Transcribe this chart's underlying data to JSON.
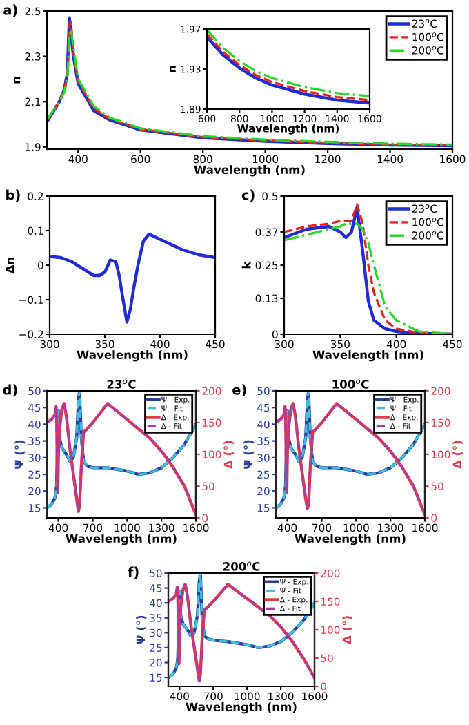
{
  "chart_data": [
    {
      "type": "line",
      "xlabel": "Wavelength (nm)",
      "ylabel": "n",
      "annotations": [
        "a)"
      ],
      "xlim": [
        300,
        1600
      ],
      "ylim": [
        1.89,
        2.5
      ],
      "xticks": [
        400,
        600,
        800,
        1000,
        1200,
        1400,
        1600
      ],
      "yticks": [
        1.9,
        2.1,
        2.3,
        2.5
      ],
      "legend": "top right",
      "x": [
        300,
        340,
        355,
        365,
        372,
        377,
        385,
        400,
        450,
        500,
        600,
        800,
        1000,
        1200,
        1400,
        1600
      ],
      "series": [
        {
          "name": "23$^{o}$C",
          "color": "#1f2bd6",
          "line_style": "solid",
          "values": [
            2.01,
            2.1,
            2.15,
            2.22,
            2.47,
            2.4,
            2.3,
            2.18,
            2.06,
            2.02,
            1.975,
            1.94,
            1.925,
            1.915,
            1.908,
            1.905
          ]
        },
        {
          "name": "100$^{o}$C",
          "color": "#e8231f",
          "line_style": "dashed",
          "values": [
            2.015,
            2.1,
            2.15,
            2.21,
            2.44,
            2.45,
            2.32,
            2.19,
            2.07,
            2.025,
            1.978,
            1.943,
            1.928,
            1.918,
            1.91,
            1.907
          ]
        },
        {
          "name": "200$^{o}$C",
          "color": "#2bd62b",
          "line_style": "dashdot",
          "values": [
            2.02,
            2.1,
            2.14,
            2.19,
            2.38,
            2.42,
            2.34,
            2.2,
            2.08,
            2.03,
            1.982,
            1.947,
            1.932,
            1.922,
            1.914,
            1.91
          ]
        }
      ]
    },
    {
      "type": "line",
      "xlabel": "Wavelength (nm)",
      "ylabel": "n",
      "xlim": [
        600,
        1600
      ],
      "ylim": [
        1.89,
        1.97
      ],
      "xticks": [
        600,
        800,
        1000,
        1200,
        1400,
        1600
      ],
      "yticks": [
        1.89,
        1.93,
        1.97
      ],
      "x": [
        600,
        700,
        800,
        900,
        1000,
        1200,
        1400,
        1600
      ],
      "series": [
        {
          "color": "#1f2bd6",
          "line_style": "solid",
          "values": [
            1.962,
            1.944,
            1.931,
            1.921,
            1.914,
            1.905,
            1.899,
            1.896
          ]
        },
        {
          "color": "#e8231f",
          "line_style": "dashed",
          "values": [
            1.965,
            1.947,
            1.934,
            1.924,
            1.917,
            1.908,
            1.902,
            1.899
          ]
        },
        {
          "color": "#2bd62b",
          "line_style": "dashdot",
          "values": [
            1.969,
            1.951,
            1.938,
            1.928,
            1.921,
            1.912,
            1.906,
            1.903
          ]
        }
      ]
    },
    {
      "type": "line",
      "xlabel": "Wavelength (nm)",
      "ylabel": "Δn",
      "annotations": [
        "b)"
      ],
      "xlim": [
        300,
        450
      ],
      "ylim": [
        -0.2,
        0.2
      ],
      "xticks": [
        300,
        350,
        400,
        450
      ],
      "yticks": [
        {
          "value": -0.2,
          "label": "−0.2"
        },
        {
          "value": -0.1,
          "label": "−0.1"
        },
        0,
        0.1,
        0.2
      ],
      "x": [
        300,
        310,
        320,
        330,
        340,
        345,
        350,
        355,
        360,
        363,
        366,
        370,
        373,
        376,
        380,
        385,
        390,
        400,
        410,
        420,
        435,
        450
      ],
      "series": [
        {
          "color": "#1f2bd6",
          "line_style": "solid",
          "values": [
            0.025,
            0.022,
            0.01,
            -0.01,
            -0.03,
            -0.03,
            -0.02,
            0.015,
            0.01,
            -0.03,
            -0.09,
            -0.165,
            -0.13,
            -0.07,
            0.0,
            0.07,
            0.09,
            0.075,
            0.06,
            0.045,
            0.03,
            0.022
          ]
        }
      ]
    },
    {
      "type": "line",
      "xlabel": "Wavelength (nm)",
      "ylabel": "k",
      "annotations": [
        "c)"
      ],
      "xlim": [
        300,
        450
      ],
      "ylim": [
        0,
        0.5
      ],
      "xticks": [
        300,
        350,
        400,
        450
      ],
      "yticks": [
        0,
        0.13,
        0.25,
        0.37,
        0.5
      ],
      "legend": "top right",
      "x": [
        300,
        320,
        340,
        350,
        355,
        360,
        365,
        370,
        375,
        380,
        390,
        400,
        420,
        450
      ],
      "series": [
        {
          "name": "23$^{o}$C",
          "color": "#1f2bd6",
          "line_style": "solid",
          "values": [
            0.35,
            0.38,
            0.39,
            0.37,
            0.35,
            0.37,
            0.46,
            0.3,
            0.12,
            0.05,
            0.02,
            0.01,
            0.003,
            0.0
          ]
        },
        {
          "name": "100$^{o}$C",
          "color": "#e8231f",
          "line_style": "dashed",
          "values": [
            0.37,
            0.39,
            0.4,
            0.41,
            0.41,
            0.41,
            0.47,
            0.4,
            0.25,
            0.15,
            0.05,
            0.02,
            0.005,
            0.0
          ]
        },
        {
          "name": "200$^{o}$C",
          "color": "#2bd62b",
          "line_style": "dashdot",
          "values": [
            0.34,
            0.36,
            0.38,
            0.39,
            0.4,
            0.4,
            0.4,
            0.38,
            0.33,
            0.25,
            0.1,
            0.05,
            0.01,
            0.0
          ]
        }
      ]
    },
    {
      "type": "line",
      "title": "23$^{o}$C",
      "xlabel": "Wavelength (nm)",
      "ylabel": "Ψ (°)",
      "y2label": "Δ (°)",
      "annotations": [
        "d)"
      ],
      "xlim": [
        300,
        1600
      ],
      "ylim": [
        12,
        50
      ],
      "y2lim": [
        0,
        200
      ],
      "xticks": [
        400,
        700,
        1000,
        1300,
        1600
      ],
      "yticks": [
        15,
        20,
        25,
        30,
        35,
        40,
        45,
        50
      ],
      "y2ticks": [
        0,
        50,
        100,
        150,
        200
      ],
      "legend": "top right",
      "x": [
        300,
        340,
        370,
        380,
        385,
        390,
        395,
        400,
        410,
        430,
        450,
        470,
        500,
        530,
        560,
        575,
        585,
        600,
        620,
        650,
        700,
        830,
        1000,
        1100,
        1200,
        1300,
        1400,
        1500,
        1600
      ],
      "series": [
        {
          "name": "Ψ - Exp.",
          "color": "#2a3c9c",
          "line_style": "solid",
          "values": [
            15,
            16,
            18,
            20,
            22,
            30,
            40,
            44,
            36,
            33,
            32,
            31,
            29,
            30,
            36,
            47,
            50,
            36,
            29,
            27.5,
            27,
            27,
            26,
            25,
            25.5,
            27,
            30,
            34,
            40
          ]
        },
        {
          "name": "Ψ - Fit",
          "color": "#3cc0e0",
          "line_style": "dashed",
          "values": [
            15,
            16,
            18,
            20,
            22,
            30,
            40,
            44,
            36,
            33,
            32,
            31,
            29,
            30,
            36,
            47,
            50,
            36,
            29,
            27.5,
            27,
            27,
            26,
            25,
            25.5,
            27,
            30,
            34,
            40
          ]
        },
        {
          "name": "Δ - Exp.",
          "color": "#e03a4a",
          "line_style": "solid",
          "axis": "y2",
          "values": [
            150,
            155,
            162,
            175,
            160,
            90,
            40,
            100,
            140,
            170,
            180,
            160,
            110,
            70,
            30,
            10,
            20,
            80,
            135,
            140,
            150,
            180,
            155,
            140,
            125,
            105,
            80,
            50,
            5
          ]
        },
        {
          "name": "Δ - Fit",
          "color": "#b03a9a",
          "line_style": "dashed",
          "axis": "y2",
          "values": [
            150,
            155,
            162,
            175,
            160,
            90,
            40,
            100,
            140,
            170,
            180,
            160,
            110,
            70,
            30,
            10,
            20,
            80,
            135,
            140,
            150,
            180,
            155,
            140,
            125,
            105,
            80,
            50,
            5
          ]
        }
      ]
    },
    {
      "type": "line",
      "title": "100$^{o}$C",
      "xlabel": "Wavelength (nm)",
      "ylabel": "Ψ (°)",
      "y2label": "Δ (°)",
      "annotations": [
        "e)"
      ],
      "xlim": [
        300,
        1600
      ],
      "ylim": [
        12,
        50
      ],
      "y2lim": [
        0,
        200
      ],
      "xticks": [
        400,
        700,
        1000,
        1300,
        1600
      ],
      "yticks": [
        15,
        20,
        25,
        30,
        35,
        40,
        45,
        50
      ],
      "y2ticks": [
        0,
        50,
        100,
        150,
        200
      ],
      "legend": "top right",
      "x": [
        300,
        340,
        370,
        380,
        385,
        390,
        395,
        400,
        410,
        430,
        450,
        470,
        500,
        530,
        560,
        575,
        585,
        600,
        620,
        650,
        700,
        830,
        1000,
        1100,
        1200,
        1300,
        1400,
        1500,
        1600
      ],
      "series": [
        {
          "name": "Ψ - Exp.",
          "color": "#2a3c9c",
          "line_style": "solid",
          "values": [
            15,
            16,
            18,
            20,
            22,
            30,
            40,
            44,
            36,
            33,
            32,
            31,
            29,
            30,
            36,
            47,
            50,
            36,
            29,
            27.5,
            27,
            27,
            26,
            25,
            25.5,
            27,
            30,
            34,
            40
          ]
        },
        {
          "name": "Ψ - Fit",
          "color": "#3cc0e0",
          "line_style": "dashed",
          "values": [
            15,
            16,
            18,
            20,
            22,
            30,
            40,
            44,
            36,
            33,
            32,
            31,
            29,
            30,
            36,
            47,
            50,
            36,
            29,
            27.5,
            27,
            27,
            26,
            25,
            25.5,
            27,
            30,
            34,
            40
          ]
        },
        {
          "name": "Δ - Exp.",
          "color": "#e03a4a",
          "line_style": "solid",
          "axis": "y2",
          "values": [
            150,
            155,
            162,
            175,
            160,
            90,
            40,
            100,
            140,
            170,
            180,
            160,
            110,
            70,
            30,
            15,
            20,
            80,
            135,
            140,
            150,
            180,
            155,
            140,
            125,
            105,
            80,
            50,
            5
          ]
        },
        {
          "name": "Δ - Fit",
          "color": "#b03a9a",
          "line_style": "dashed",
          "axis": "y2",
          "values": [
            150,
            155,
            162,
            175,
            160,
            90,
            40,
            100,
            140,
            170,
            180,
            160,
            110,
            70,
            30,
            15,
            20,
            80,
            135,
            140,
            150,
            180,
            155,
            140,
            125,
            105,
            80,
            50,
            5
          ]
        }
      ]
    },
    {
      "type": "line",
      "title": "200$^{o}$C",
      "xlabel": "Wavelength (nm)",
      "ylabel": "Ψ (°)",
      "y2label": "Δ (°)",
      "annotations": [
        "f)"
      ],
      "xlim": [
        300,
        1600
      ],
      "ylim": [
        12,
        50
      ],
      "y2lim": [
        0,
        200
      ],
      "xticks": [
        400,
        700,
        1000,
        1300,
        1600
      ],
      "yticks": [
        15,
        20,
        25,
        30,
        35,
        40,
        45,
        50
      ],
      "y2ticks": [
        0,
        50,
        100,
        150,
        200
      ],
      "legend": "top right",
      "x": [
        300,
        340,
        370,
        380,
        385,
        390,
        395,
        400,
        410,
        430,
        450,
        470,
        500,
        530,
        560,
        575,
        585,
        600,
        620,
        650,
        700,
        830,
        1000,
        1100,
        1200,
        1300,
        1400,
        1500,
        1600
      ],
      "series": [
        {
          "name": "Ψ - Exp.",
          "color": "#2a3c9c",
          "line_style": "solid",
          "values": [
            15,
            16,
            18,
            20,
            22,
            30,
            40,
            44,
            36,
            33,
            32,
            31,
            29,
            30,
            36,
            47,
            50,
            36,
            29,
            28,
            27.5,
            27,
            26,
            25,
            25.5,
            27,
            30,
            34,
            40
          ]
        },
        {
          "name": "Ψ - Fit",
          "color": "#3cc0e0",
          "line_style": "dashed",
          "values": [
            15,
            16,
            18,
            20,
            22,
            30,
            40,
            44,
            36,
            33,
            32,
            31,
            29,
            30,
            36,
            47,
            50,
            36,
            29,
            28,
            27.5,
            27,
            26,
            25,
            25.5,
            27,
            30,
            34,
            40
          ]
        },
        {
          "name": "Δ - Exp.",
          "color": "#e03a4a",
          "line_style": "solid",
          "axis": "y2",
          "values": [
            150,
            155,
            162,
            175,
            160,
            90,
            40,
            100,
            140,
            170,
            180,
            160,
            110,
            70,
            30,
            10,
            20,
            80,
            135,
            140,
            150,
            180,
            155,
            140,
            125,
            105,
            80,
            50,
            15
          ]
        },
        {
          "name": "Δ - Fit",
          "color": "#b03a9a",
          "line_style": "dashed",
          "axis": "y2",
          "values": [
            150,
            155,
            162,
            175,
            160,
            90,
            40,
            100,
            140,
            170,
            180,
            160,
            110,
            70,
            30,
            10,
            20,
            80,
            135,
            140,
            150,
            180,
            155,
            140,
            125,
            105,
            80,
            50,
            15
          ]
        }
      ]
    }
  ]
}
